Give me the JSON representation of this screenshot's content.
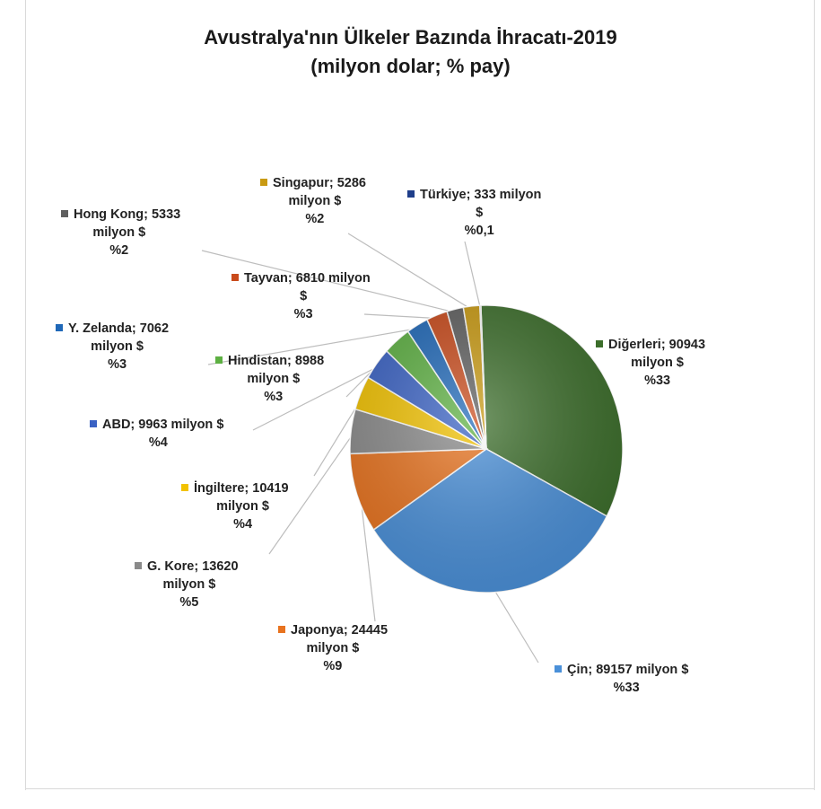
{
  "chart_data": {
    "type": "pie",
    "title": "Avustralya'nın Ülkeler Bazında İhracatı-2019",
    "subtitle": "(milyon dolar; % pay)",
    "legend": "none",
    "slices": [
      {
        "label": "Diğerleri",
        "value": 90943,
        "lines": [
          "Diğerleri; 90943",
          "milyon $",
          "%33"
        ],
        "color": "#3c6e2b"
      },
      {
        "label": "Çin",
        "value": 89157,
        "lines": [
          "Çin; 89157 milyon $",
          "%33"
        ],
        "color": "#4a90d9"
      },
      {
        "label": "Japonya",
        "value": 24445,
        "lines": [
          "Japonya; 24445",
          "milyon $",
          "%9"
        ],
        "color": "#e8731f"
      },
      {
        "label": "G. Kore",
        "value": 13620,
        "lines": [
          "G. Kore; 13620",
          "milyon $",
          "%5"
        ],
        "color": "#8a8a8a"
      },
      {
        "label": "İngiltere",
        "value": 10419,
        "lines": [
          "İngiltere; 10419",
          "milyon $",
          "%4"
        ],
        "color": "#f2c200"
      },
      {
        "label": "ABD",
        "value": 9963,
        "lines": [
          "ABD; 9963 milyon $",
          "%4"
        ],
        "color": "#3a62c4"
      },
      {
        "label": "Hindistan",
        "value": 8988,
        "lines": [
          "Hindistan; 8988",
          "milyon $",
          "%3"
        ],
        "color": "#5db042"
      },
      {
        "label": "Y. Zelanda",
        "value": 7062,
        "lines": [
          "Y. Zelanda; 7062",
          "milyon $",
          "%3"
        ],
        "color": "#1f68b8"
      },
      {
        "label": "Tayvan",
        "value": 6810,
        "lines": [
          "Tayvan; 6810 milyon",
          "$",
          "%3"
        ],
        "color": "#c94a1b"
      },
      {
        "label": "Hong Kong",
        "value": 5333,
        "lines": [
          "Hong Kong; 5333",
          "milyon $",
          "%2"
        ],
        "color": "#5f5f5f"
      },
      {
        "label": "Singapur",
        "value": 5286,
        "lines": [
          "Singapur; 5286",
          "milyon $",
          "%2"
        ],
        "color": "#c99a12"
      },
      {
        "label": "Türkiye",
        "value": 333,
        "lines": [
          "Türkiye; 333 milyon",
          "$",
          "%0,1"
        ],
        "color": "#1f3e8a"
      }
    ]
  }
}
